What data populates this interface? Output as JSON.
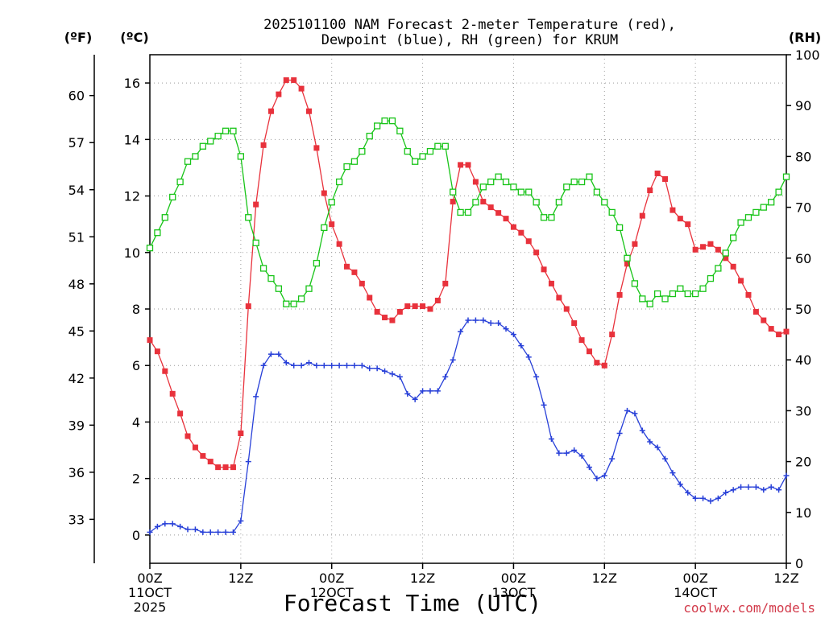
{
  "chart_data": {
    "type": "line",
    "title_lines": [
      "2025101100 NAM Forecast 2-meter Temperature (red),",
      "Dewpoint (blue), RH (green) for KRUM"
    ],
    "xlabel": "Forecast Time (UTC)",
    "credit": "coolwx.com/models",
    "unit_labels": {
      "fahrenheit": "(ºF)",
      "celsius": "(ºC)",
      "rh": "(RH)"
    },
    "x_ticks": [
      {
        "hour": 0,
        "lines": [
          "00Z",
          "11OCT",
          "2025"
        ]
      },
      {
        "hour": 12,
        "lines": [
          "12Z"
        ]
      },
      {
        "hour": 24,
        "lines": [
          "00Z",
          "12OCT"
        ]
      },
      {
        "hour": 36,
        "lines": [
          "12Z"
        ]
      },
      {
        "hour": 48,
        "lines": [
          "00Z",
          "13OCT"
        ]
      },
      {
        "hour": 60,
        "lines": [
          "12Z"
        ]
      },
      {
        "hour": 72,
        "lines": [
          "00Z",
          "14OCT"
        ]
      },
      {
        "hour": 84,
        "lines": [
          "12Z"
        ]
      }
    ],
    "xlim_hours": [
      0,
      84
    ],
    "ylim_celsius": [
      -1,
      17
    ],
    "ylim_rh": [
      0,
      100
    ],
    "celsius_ticks": [
      0,
      2,
      4,
      6,
      8,
      10,
      12,
      14,
      16
    ],
    "fahrenheit_ticks": [
      33,
      36,
      39,
      42,
      45,
      48,
      51,
      54,
      57,
      60
    ],
    "rh_ticks": [
      0,
      10,
      20,
      30,
      40,
      50,
      60,
      70,
      80,
      90,
      100
    ],
    "grid": true,
    "x_hours": [
      0,
      1,
      2,
      3,
      4,
      5,
      6,
      7,
      8,
      9,
      10,
      11,
      12,
      13,
      14,
      15,
      16,
      17,
      18,
      19,
      20,
      21,
      22,
      23,
      24,
      25,
      26,
      27,
      28,
      29,
      30,
      31,
      32,
      33,
      34,
      35,
      36,
      37,
      38,
      39,
      40,
      41,
      42,
      43,
      44,
      45,
      46,
      47,
      48,
      49,
      50,
      51,
      52,
      53,
      54,
      55,
      56,
      57,
      58,
      59,
      60,
      61,
      62,
      63,
      64,
      65,
      66,
      67,
      68,
      69,
      70,
      71,
      72,
      73,
      74,
      75,
      76,
      77,
      78,
      79,
      80,
      81,
      82,
      83,
      84
    ],
    "series": [
      {
        "name": "Temperature",
        "axis": "celsius",
        "color": "#e8323c",
        "marker": "filled-square",
        "values": [
          6.9,
          6.5,
          5.8,
          5.0,
          4.3,
          3.5,
          3.1,
          2.8,
          2.6,
          2.4,
          2.4,
          2.4,
          3.6,
          8.1,
          11.7,
          13.8,
          15.0,
          15.6,
          16.1,
          16.1,
          15.8,
          15.0,
          13.7,
          12.1,
          11.0,
          10.3,
          9.5,
          9.3,
          8.9,
          8.4,
          7.9,
          7.7,
          7.6,
          7.9,
          8.1,
          8.1,
          8.1,
          8.0,
          8.3,
          8.9,
          11.8,
          13.1,
          13.1,
          12.5,
          11.8,
          11.6,
          11.4,
          11.2,
          10.9,
          10.7,
          10.4,
          10.0,
          9.4,
          8.9,
          8.4,
          8.0,
          7.5,
          6.9,
          6.5,
          6.1,
          6.0,
          7.1,
          8.5,
          9.6,
          10.3,
          11.3,
          12.2,
          12.8,
          12.6,
          11.5,
          11.2,
          11.0,
          10.1,
          10.2,
          10.3,
          10.1,
          9.8,
          9.5,
          9.0,
          8.5,
          7.9,
          7.6,
          7.3,
          7.1,
          7.2
        ]
      },
      {
        "name": "Dewpoint",
        "axis": "celsius",
        "color": "#2840d8",
        "marker": "plus",
        "values": [
          0.1,
          0.3,
          0.4,
          0.4,
          0.3,
          0.2,
          0.2,
          0.1,
          0.1,
          0.1,
          0.1,
          0.1,
          0.5,
          2.6,
          4.9,
          6.0,
          6.4,
          6.4,
          6.1,
          6.0,
          6.0,
          6.1,
          6.0,
          6.0,
          6.0,
          6.0,
          6.0,
          6.0,
          6.0,
          5.9,
          5.9,
          5.8,
          5.7,
          5.6,
          5.0,
          4.8,
          5.1,
          5.1,
          5.1,
          5.6,
          6.2,
          7.2,
          7.6,
          7.6,
          7.6,
          7.5,
          7.5,
          7.3,
          7.1,
          6.7,
          6.3,
          5.6,
          4.6,
          3.4,
          2.9,
          2.9,
          3.0,
          2.8,
          2.4,
          2.0,
          2.1,
          2.7,
          3.6,
          4.4,
          4.3,
          3.7,
          3.3,
          3.1,
          2.7,
          2.2,
          1.8,
          1.5,
          1.3,
          1.3,
          1.2,
          1.3,
          1.5,
          1.6,
          1.7,
          1.7,
          1.7,
          1.6,
          1.7,
          1.6,
          2.1
        ]
      },
      {
        "name": "RH",
        "axis": "rh",
        "color": "#18c418",
        "marker": "open-square",
        "values": [
          62,
          65,
          68,
          72,
          75,
          79,
          80,
          82,
          83,
          84,
          85,
          85,
          80,
          68,
          63,
          58,
          56,
          54,
          51,
          51,
          52,
          54,
          59,
          66,
          71,
          75,
          78,
          79,
          81,
          84,
          86,
          87,
          87,
          85,
          81,
          79,
          80,
          81,
          82,
          82,
          73,
          69,
          69,
          71,
          74,
          75,
          76,
          75,
          74,
          73,
          73,
          71,
          68,
          68,
          71,
          74,
          75,
          75,
          76,
          73,
          71,
          69,
          66,
          60,
          55,
          52,
          51,
          53,
          52,
          53,
          54,
          53,
          53,
          54,
          56,
          58,
          61,
          64,
          67,
          68,
          69,
          70,
          71,
          73,
          76
        ]
      }
    ]
  }
}
